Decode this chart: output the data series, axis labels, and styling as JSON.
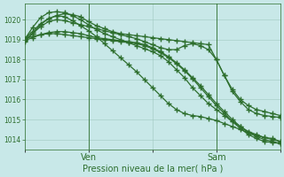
{
  "background_color": "#c8e8e8",
  "plot_bg_color": "#c8e8e8",
  "grid_color": "#a0c8c0",
  "line_color": "#2d6e2d",
  "marker_color": "#2d6e2d",
  "ylabel_ticks": [
    1014,
    1015,
    1016,
    1017,
    1018,
    1019,
    1020
  ],
  "ylim": [
    1013.5,
    1020.8
  ],
  "xlabel": "Pression niveau de la mer( hPa )",
  "xtick_labels": [
    "",
    "Ven",
    "",
    "Sam",
    ""
  ],
  "xtick_positions": [
    0,
    24,
    48,
    72,
    96
  ],
  "xlim": [
    0,
    96
  ],
  "ven_x": 24,
  "sam_x": 72,
  "series": [
    {
      "x": [
        0,
        3,
        6,
        9,
        12,
        15,
        18,
        21,
        24,
        27,
        30,
        33,
        36,
        39,
        42,
        45,
        48,
        51,
        54,
        57,
        60,
        63,
        66,
        69,
        72,
        75,
        78,
        81,
        84,
        87,
        90,
        93,
        96
      ],
      "y": [
        1019.05,
        1019.4,
        1019.8,
        1020.05,
        1020.2,
        1020.3,
        1020.25,
        1020.15,
        1019.9,
        1019.7,
        1019.55,
        1019.4,
        1019.3,
        1019.25,
        1019.2,
        1019.15,
        1019.1,
        1019.05,
        1019.0,
        1018.95,
        1018.9,
        1018.85,
        1018.8,
        1018.75,
        1018.0,
        1017.2,
        1016.4,
        1015.9,
        1015.5,
        1015.3,
        1015.2,
        1015.15,
        1015.1
      ]
    },
    {
      "x": [
        0,
        3,
        6,
        9,
        12,
        15,
        18,
        21,
        24,
        27,
        30,
        33,
        36,
        39,
        42,
        45,
        48,
        51,
        54,
        57,
        60,
        63,
        66,
        69,
        72,
        75,
        78,
        81,
        84,
        87,
        90,
        93,
        96
      ],
      "y": [
        1019.0,
        1019.6,
        1020.1,
        1020.35,
        1020.4,
        1020.35,
        1020.2,
        1020.0,
        1019.75,
        1019.5,
        1019.3,
        1019.15,
        1019.0,
        1018.85,
        1018.7,
        1018.55,
        1018.4,
        1018.2,
        1017.9,
        1017.5,
        1017.1,
        1016.6,
        1016.2,
        1015.8,
        1015.5,
        1015.2,
        1014.9,
        1014.65,
        1014.4,
        1014.25,
        1014.1,
        1014.05,
        1013.9
      ]
    },
    {
      "x": [
        0,
        3,
        6,
        9,
        12,
        15,
        18,
        21,
        24,
        27,
        30,
        33,
        36,
        39,
        42,
        45,
        48,
        51,
        54,
        57,
        60,
        63,
        66,
        69,
        72,
        75,
        78,
        81,
        84,
        87,
        90,
        93,
        96
      ],
      "y": [
        1019.0,
        1019.3,
        1019.65,
        1019.9,
        1020.0,
        1019.95,
        1019.85,
        1019.75,
        1019.65,
        1019.55,
        1019.45,
        1019.35,
        1019.25,
        1019.15,
        1019.05,
        1018.9,
        1018.75,
        1018.6,
        1018.5,
        1018.5,
        1018.7,
        1018.8,
        1018.7,
        1018.5,
        1018.0,
        1017.2,
        1016.5,
        1016.0,
        1015.7,
        1015.5,
        1015.4,
        1015.3,
        1015.2
      ]
    },
    {
      "x": [
        0,
        3,
        6,
        9,
        12,
        15,
        18,
        21,
        24,
        27,
        30,
        33,
        36,
        39,
        42,
        45,
        48,
        51,
        54,
        57,
        60,
        63,
        66,
        69,
        72,
        75,
        78,
        81,
        84,
        87,
        90,
        93,
        96
      ],
      "y": [
        1018.9,
        1019.3,
        1019.75,
        1020.05,
        1020.2,
        1020.15,
        1019.95,
        1019.7,
        1019.45,
        1019.15,
        1018.8,
        1018.45,
        1018.1,
        1017.75,
        1017.4,
        1017.0,
        1016.6,
        1016.2,
        1015.8,
        1015.5,
        1015.3,
        1015.2,
        1015.15,
        1015.05,
        1014.95,
        1014.8,
        1014.65,
        1014.5,
        1014.35,
        1014.2,
        1014.1,
        1014.0,
        1013.9
      ]
    },
    {
      "x": [
        0,
        3,
        6,
        9,
        12,
        15,
        18,
        21,
        24,
        27,
        30,
        33,
        36,
        39,
        42,
        45,
        48,
        51,
        54,
        57,
        60,
        63,
        66,
        69,
        72,
        75,
        78,
        81,
        84,
        87,
        90,
        93,
        96
      ],
      "y": [
        1018.95,
        1019.1,
        1019.25,
        1019.35,
        1019.4,
        1019.4,
        1019.35,
        1019.3,
        1019.2,
        1019.1,
        1019.05,
        1019.0,
        1018.95,
        1018.9,
        1018.85,
        1018.75,
        1018.6,
        1018.4,
        1018.15,
        1017.85,
        1017.5,
        1017.1,
        1016.7,
        1016.25,
        1015.8,
        1015.4,
        1015.0,
        1014.65,
        1014.35,
        1014.15,
        1014.0,
        1013.9,
        1013.8
      ]
    },
    {
      "x": [
        0,
        3,
        6,
        9,
        12,
        15,
        18,
        21,
        24,
        27,
        30,
        33,
        36,
        39,
        42,
        45,
        48,
        51,
        54,
        57,
        60,
        63,
        66,
        69,
        72,
        75,
        78,
        81,
        84,
        87,
        90,
        93,
        96
      ],
      "y": [
        1019.05,
        1019.15,
        1019.25,
        1019.3,
        1019.3,
        1019.25,
        1019.2,
        1019.15,
        1019.1,
        1019.05,
        1019.0,
        1018.95,
        1018.9,
        1018.85,
        1018.8,
        1018.7,
        1018.55,
        1018.35,
        1018.1,
        1017.8,
        1017.45,
        1017.05,
        1016.6,
        1016.15,
        1015.7,
        1015.3,
        1014.9,
        1014.55,
        1014.25,
        1014.05,
        1013.9,
        1013.85,
        1013.8
      ]
    }
  ]
}
